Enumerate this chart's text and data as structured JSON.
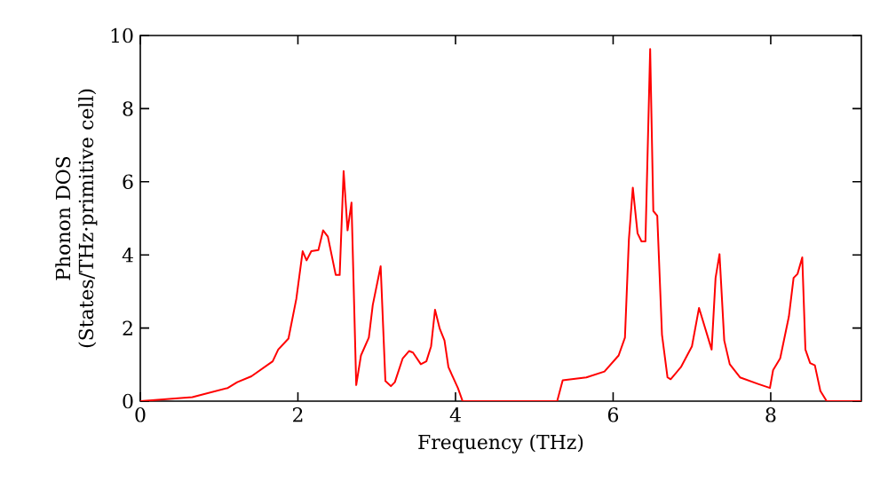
{
  "chart_data": {
    "type": "line",
    "xlabel": "Frequency (THz)",
    "ylabel": "Phonon DOS (States/THz·primitive cell)",
    "xlim": [
      0,
      9.15
    ],
    "ylim": [
      0,
      10
    ],
    "xticks": [
      0,
      2,
      4,
      6,
      8
    ],
    "yticks": [
      0,
      2,
      4,
      6,
      8,
      10
    ],
    "series": [
      {
        "color": "#ff0000",
        "x": [
          0,
          0.66,
          1.11,
          1.23,
          1.41,
          1.68,
          1.75,
          1.88,
          1.98,
          2.06,
          2.11,
          2.17,
          2.26,
          2.32,
          2.38,
          2.48,
          2.53,
          2.58,
          2.63,
          2.68,
          2.74,
          2.8,
          2.9,
          2.95,
          3.05,
          3.11,
          3.18,
          3.23,
          3.33,
          3.41,
          3.46,
          3.56,
          3.63,
          3.69,
          3.74,
          3.8,
          3.86,
          3.91,
          4.03,
          4.09,
          5.29,
          5.36,
          5.66,
          5.89,
          6.07,
          6.15,
          6.2,
          6.25,
          6.31,
          6.36,
          6.41,
          6.47,
          6.51,
          6.56,
          6.62,
          6.69,
          6.73,
          6.86,
          7.0,
          7.09,
          7.25,
          7.3,
          7.35,
          7.41,
          7.48,
          7.61,
          7.84,
          7.99,
          8.03,
          8.12,
          8.23,
          8.29,
          8.34,
          8.4,
          8.44,
          8.5,
          8.56,
          8.63,
          8.71,
          9.15
        ],
        "values": [
          0,
          0.11,
          0.36,
          0.52,
          0.68,
          1.09,
          1.41,
          1.71,
          2.8,
          4.1,
          3.85,
          4.1,
          4.13,
          4.67,
          4.5,
          3.45,
          3.45,
          6.29,
          4.67,
          5.43,
          0.44,
          1.25,
          1.74,
          2.63,
          3.69,
          0.55,
          0.41,
          0.52,
          1.17,
          1.37,
          1.33,
          1.01,
          1.09,
          1.5,
          2.5,
          1.98,
          1.66,
          0.93,
          0.36,
          0,
          0,
          0.57,
          0.65,
          0.81,
          1.25,
          1.74,
          4.42,
          5.84,
          4.59,
          4.37,
          4.37,
          9.63,
          5.2,
          5.07,
          1.82,
          0.65,
          0.6,
          0.93,
          1.5,
          2.55,
          1.41,
          3.37,
          4.02,
          1.66,
          1.01,
          0.65,
          0.47,
          0.36,
          0.85,
          1.17,
          2.31,
          3.37,
          3.48,
          3.93,
          1.41,
          1.04,
          0.98,
          0.28,
          0,
          0
        ]
      }
    ]
  }
}
